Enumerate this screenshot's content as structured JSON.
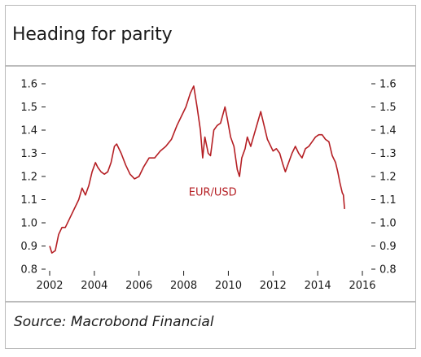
{
  "title": "Heading for parity",
  "source": "Source: Macrobond Financial",
  "colors": {
    "series": "#b51f24",
    "frame": "#b9b9b9",
    "separator": "#7a7a7a"
  },
  "chart_data": {
    "type": "line",
    "title": "Heading for parity",
    "xlabel": "",
    "ylabel": "",
    "xlim": [
      2002,
      2016
    ],
    "ylim": [
      0.8,
      1.6
    ],
    "x_ticks": [
      "2002",
      "2004",
      "2006",
      "2008",
      "2010",
      "2012",
      "2014",
      "2016"
    ],
    "y_ticks": [
      "0.8",
      "0.9",
      "1.0",
      "1.1",
      "1.2",
      "1.3",
      "1.4",
      "1.5",
      "1.6"
    ],
    "grid": false,
    "legend": "inline label",
    "series": [
      {
        "name": "EUR/USD",
        "x": [
          2002.0,
          2002.1,
          2002.25,
          2002.4,
          2002.55,
          2002.7,
          2002.9,
          2003.1,
          2003.3,
          2003.45,
          2003.6,
          2003.75,
          2003.9,
          2004.05,
          2004.15,
          2004.3,
          2004.45,
          2004.6,
          2004.75,
          2004.9,
          2005.0,
          2005.2,
          2005.4,
          2005.6,
          2005.8,
          2006.0,
          2006.2,
          2006.45,
          2006.7,
          2006.95,
          2007.2,
          2007.45,
          2007.7,
          2007.9,
          2008.1,
          2008.3,
          2008.45,
          2008.6,
          2008.75,
          2008.85,
          2008.95,
          2009.1,
          2009.2,
          2009.35,
          2009.5,
          2009.65,
          2009.85,
          2009.95,
          2010.1,
          2010.25,
          2010.4,
          2010.5,
          2010.6,
          2010.75,
          2010.85,
          2011.0,
          2011.15,
          2011.3,
          2011.45,
          2011.6,
          2011.75,
          2011.85,
          2012.0,
          2012.15,
          2012.3,
          2012.45,
          2012.55,
          2012.7,
          2012.85,
          2013.0,
          2013.15,
          2013.3,
          2013.45,
          2013.6,
          2013.75,
          2013.9,
          2014.05,
          2014.2,
          2014.35,
          2014.5,
          2014.65,
          2014.8,
          2014.9,
          2015.0,
          2015.1,
          2015.15,
          2015.2
        ],
        "y": [
          0.9,
          0.87,
          0.88,
          0.95,
          0.98,
          0.98,
          1.02,
          1.06,
          1.1,
          1.15,
          1.12,
          1.16,
          1.22,
          1.26,
          1.24,
          1.22,
          1.21,
          1.22,
          1.26,
          1.33,
          1.34,
          1.3,
          1.25,
          1.21,
          1.19,
          1.2,
          1.24,
          1.28,
          1.28,
          1.31,
          1.33,
          1.36,
          1.42,
          1.46,
          1.5,
          1.56,
          1.59,
          1.5,
          1.4,
          1.28,
          1.37,
          1.3,
          1.29,
          1.4,
          1.42,
          1.43,
          1.5,
          1.45,
          1.37,
          1.33,
          1.23,
          1.2,
          1.28,
          1.32,
          1.37,
          1.33,
          1.38,
          1.43,
          1.48,
          1.42,
          1.36,
          1.34,
          1.31,
          1.32,
          1.3,
          1.25,
          1.22,
          1.26,
          1.3,
          1.33,
          1.3,
          1.28,
          1.32,
          1.33,
          1.35,
          1.37,
          1.38,
          1.38,
          1.36,
          1.35,
          1.29,
          1.26,
          1.22,
          1.17,
          1.13,
          1.12,
          1.06
        ]
      }
    ]
  }
}
